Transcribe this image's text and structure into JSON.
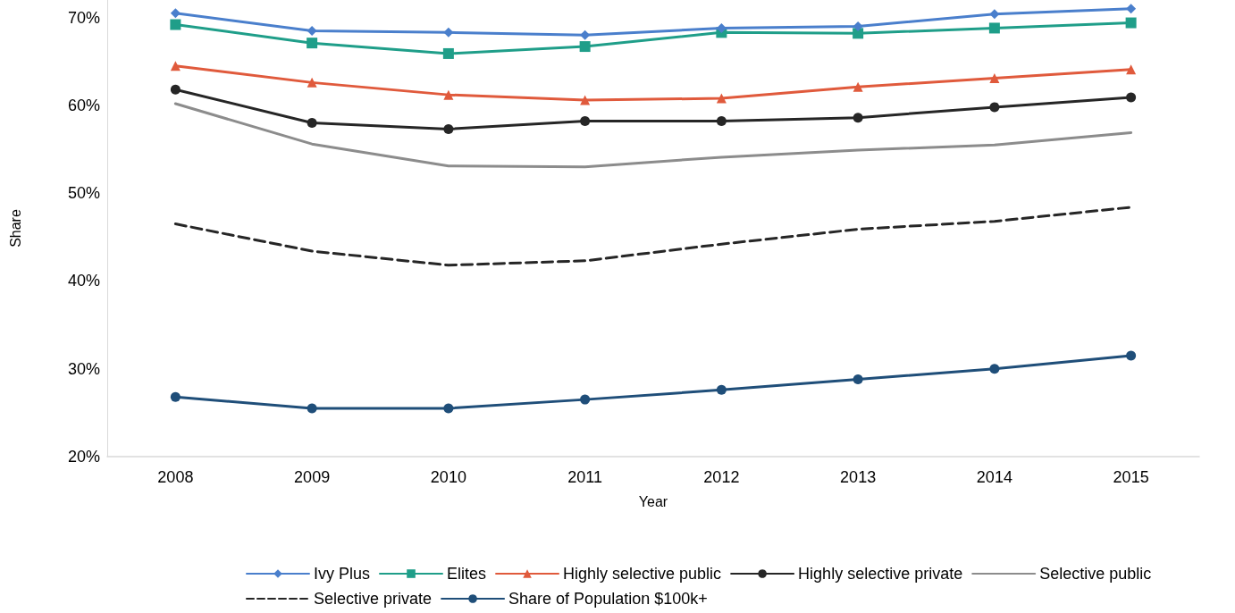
{
  "chart_data": {
    "type": "line",
    "xlabel": "Year",
    "ylabel": "Share",
    "categories": [
      "2008",
      "2009",
      "2010",
      "2011",
      "2012",
      "2013",
      "2014",
      "2015"
    ],
    "ylim": [
      20,
      72
    ],
    "yticks": [
      {
        "value": 20,
        "label": "20%"
      },
      {
        "value": 30,
        "label": "30%"
      },
      {
        "value": 40,
        "label": "40%"
      },
      {
        "value": 50,
        "label": "50%"
      },
      {
        "value": 60,
        "label": "60%"
      },
      {
        "value": 70,
        "label": "70%"
      }
    ],
    "grid": false,
    "legend": "bottom",
    "line_style": "solid",
    "series": [
      {
        "name": "Ivy Plus",
        "color": "#4a7fcc",
        "marker": "diamond",
        "values": [
          70.5,
          68.5,
          68.3,
          68.0,
          68.8,
          69.0,
          70.4,
          71.0
        ]
      },
      {
        "name": "Elites",
        "color": "#1f9e89",
        "marker": "square",
        "values": [
          69.2,
          67.1,
          65.9,
          66.7,
          68.3,
          68.2,
          68.8,
          69.4
        ]
      },
      {
        "name": "Highly selective public",
        "color": "#e05a3c",
        "marker": "triangle",
        "values": [
          64.5,
          62.6,
          61.2,
          60.6,
          60.8,
          62.1,
          63.1,
          64.1
        ]
      },
      {
        "name": "Highly selective private",
        "color": "#262626",
        "marker": "circle",
        "values": [
          61.8,
          58.0,
          57.3,
          58.2,
          58.2,
          58.6,
          59.8,
          60.9
        ]
      },
      {
        "name": "Selective public",
        "color": "#8c8c8c",
        "marker": "none",
        "values": [
          60.2,
          55.6,
          53.1,
          53.0,
          54.1,
          54.9,
          55.5,
          56.9
        ]
      },
      {
        "name": "Selective private",
        "color": "#262626",
        "marker": "none",
        "line_style": "dashed",
        "values": [
          46.5,
          43.4,
          41.8,
          42.3,
          44.2,
          45.9,
          46.8,
          48.4
        ]
      },
      {
        "name": "Share of Population $100k+",
        "color": "#1f4e79",
        "marker": "circle",
        "values": [
          26.8,
          25.5,
          25.5,
          26.5,
          27.6,
          28.8,
          30.0,
          31.5
        ]
      }
    ]
  }
}
